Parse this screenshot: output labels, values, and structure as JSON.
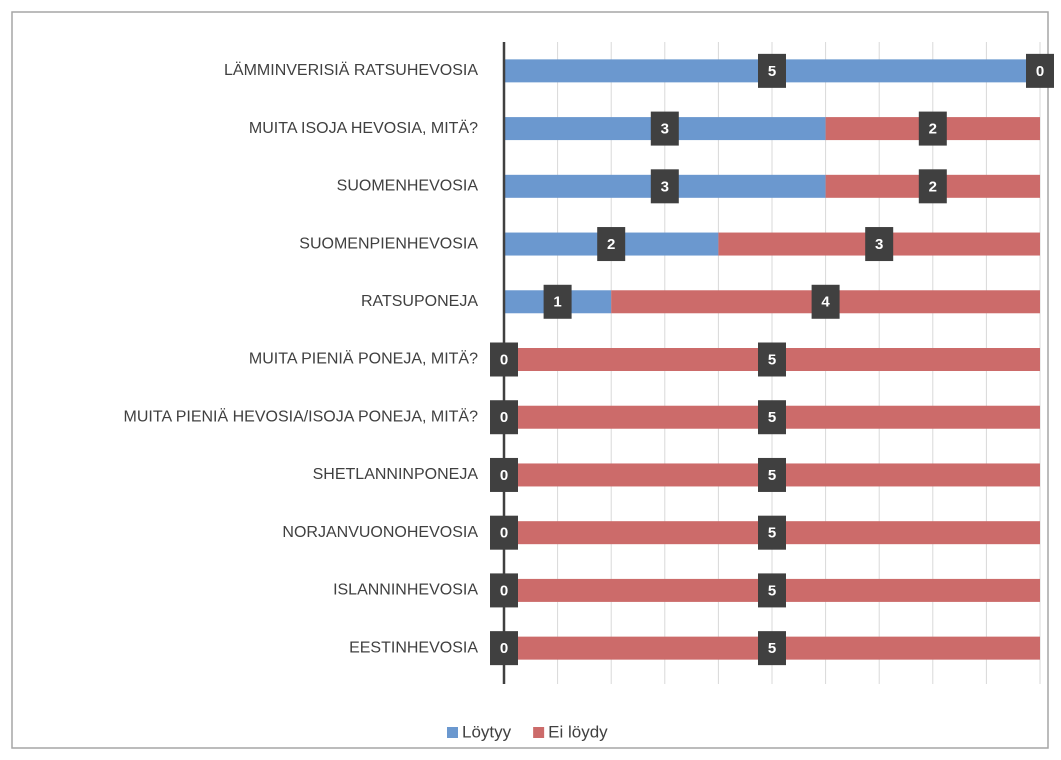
{
  "chart_data": {
    "type": "stacked-barh",
    "categories": [
      "LÄMMINVERISIÄ RATSUHEVOSIA",
      "MUITA ISOJA HEVOSIA, MITÄ?",
      "SUOMENHEVOSIA",
      "SUOMENPIENHEVOSIA",
      "RATSUPONEJA",
      "MUITA PIENIÄ PONEJA, MITÄ?",
      "MUITA PIENIÄ HEVOSIA/ISOJA PONEJA, MITÄ?",
      "SHETLANNINPONEJA",
      "NORJANVUONOHEVOSIA",
      "ISLANNINHEVOSIA",
      "EESTINHEVOSIA"
    ],
    "series": [
      {
        "name": "Löytyy",
        "color": "#6b98cf",
        "values": [
          5,
          3,
          3,
          2,
          1,
          0,
          0,
          0,
          0,
          0,
          0
        ]
      },
      {
        "name": "Ei löydy",
        "color": "#cc6b6a",
        "values": [
          0,
          2,
          2,
          3,
          4,
          5,
          5,
          5,
          5,
          5,
          5
        ]
      }
    ],
    "xlim": [
      0,
      5
    ],
    "xticks": [
      0,
      0.5,
      1,
      1.5,
      2,
      2.5,
      3,
      3.5,
      4,
      4.5,
      5
    ],
    "grid": true,
    "legend": "bottom"
  }
}
